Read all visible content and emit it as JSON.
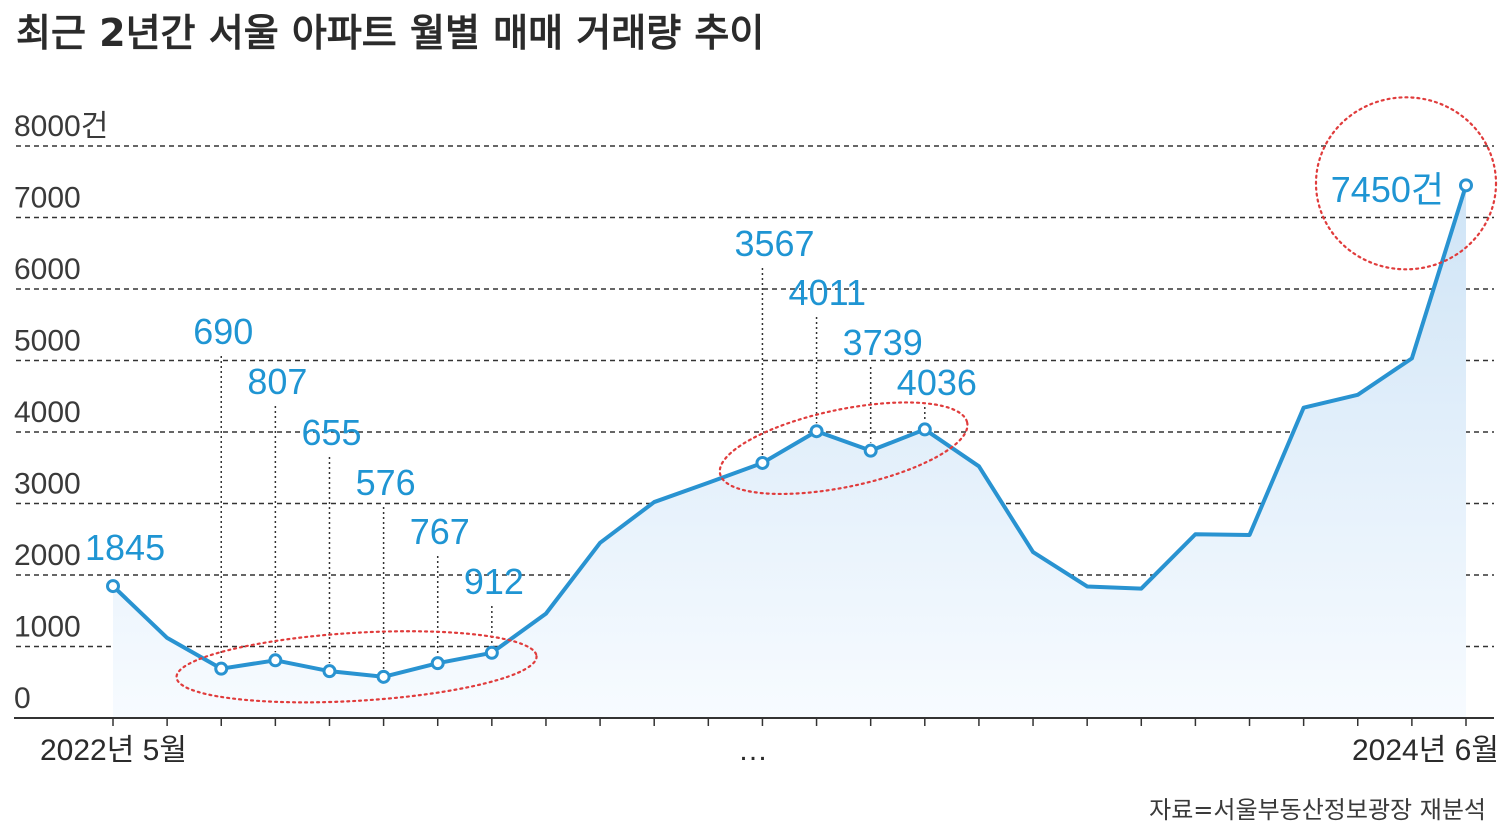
{
  "chart_data": {
    "type": "line",
    "title": "최근 2년간 서울 아파트 월별 매매 거래량 추이",
    "ytick_labels": [
      "0",
      "1000",
      "2000",
      "3000",
      "4000",
      "5000",
      "6000",
      "7000",
      "8000건"
    ],
    "yticks": [
      0,
      1000,
      2000,
      3000,
      4000,
      5000,
      6000,
      7000,
      8000
    ],
    "ylim": [
      0,
      8000
    ],
    "x_start_label": "2022년 5월",
    "x_end_label": "2024년 6월",
    "x_middle_label": "…",
    "x": [
      "2022-05",
      "2022-06",
      "2022-07",
      "2022-08",
      "2022-09",
      "2022-10",
      "2022-11",
      "2022-12",
      "2023-01",
      "2023-02",
      "2023-03",
      "2023-04",
      "2023-05",
      "2023-06",
      "2023-07",
      "2023-08",
      "2023-09",
      "2023-10",
      "2023-11",
      "2023-12",
      "2024-01",
      "2024-02",
      "2024-03",
      "2024-04",
      "2024-05",
      "2024-06"
    ],
    "values": [
      1845,
      1120,
      690,
      807,
      655,
      576,
      767,
      912,
      1460,
      2450,
      3020,
      3290,
      3567,
      4011,
      3739,
      4036,
      3520,
      2320,
      1840,
      1810,
      2570,
      2560,
      4340,
      4520,
      5030,
      7450
    ],
    "labels": [
      {
        "index": 0,
        "text": "1845"
      },
      {
        "index": 2,
        "text": "690"
      },
      {
        "index": 3,
        "text": "807"
      },
      {
        "index": 4,
        "text": "655"
      },
      {
        "index": 5,
        "text": "576"
      },
      {
        "index": 6,
        "text": "767"
      },
      {
        "index": 7,
        "text": "912"
      },
      {
        "index": 12,
        "text": "3567"
      },
      {
        "index": 13,
        "text": "4011"
      },
      {
        "index": 14,
        "text": "3739"
      },
      {
        "index": 15,
        "text": "4036"
      },
      {
        "index": 25,
        "text": "7450건"
      }
    ],
    "highlight_groups": [
      [
        2,
        7
      ],
      [
        12,
        15
      ],
      [
        25,
        25
      ]
    ],
    "colors": {
      "line": "#2993d1",
      "area_top": "#cfe4f6",
      "area_bottom": "#f7fbff",
      "grid": "#333333",
      "highlight": "#e03c3c",
      "label": "#1f95d3"
    }
  },
  "source": "자료=서울부동산정보광장 재분석"
}
